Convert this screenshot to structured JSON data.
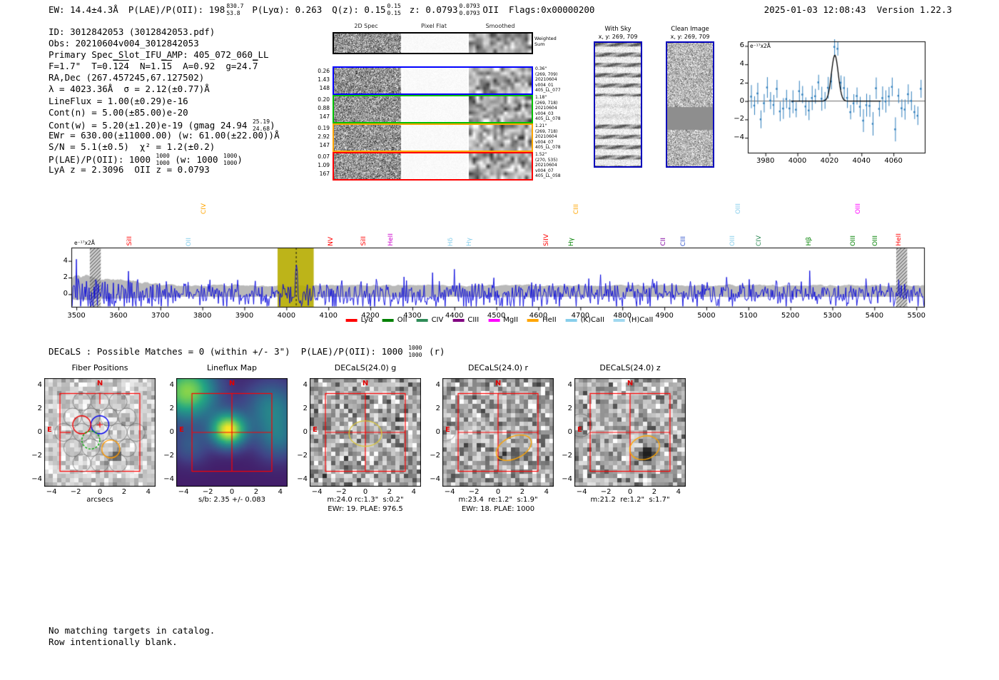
{
  "header": {
    "ew": "EW: 14.4±4.3Å",
    "plae": "P(LAE)/P(OII): 198",
    "plae_hi": "830.7",
    "plae_lo": "53.8",
    "plya": "P(Lyα): 0.263",
    "qz": "Q(z): 0.15",
    "qz_hi": "0.15",
    "qz_lo": "0.15",
    "z": "z: 0.0793",
    "z_hi": "0.0793",
    "z_lo": "0.0793",
    "ztype": "OII",
    "flags": "Flags:0x00000200",
    "timestamp": "2025-01-03 12:08:43  Version 1.22.3"
  },
  "info": {
    "l1": "ID: 3012842053 (3012842053.pdf)",
    "l2": "Obs: 20210604v004_3012842053",
    "l3": "Primary Spec_Slot_IFU_AMP: 405_072_060_LL",
    "l4_parts": [
      "F=1.7\"  T=0.",
      "124",
      "  N=1.",
      "15",
      "  A=0.92  g=24.",
      "7"
    ],
    "l5": "RA,Dec (267.457245,67.127502)",
    "l6": "λ = 4023.36Å  σ = 2.12(±0.77)Å",
    "l7": "LineFlux = 1.00(±0.29)e-16",
    "l8": "Cont(n) = 5.00(±85.00)e-20",
    "l9_pre": "Cont(w) = 5.20(±1.20)e-19 (gmag 24.94 ",
    "l9_hi": "25.19",
    "l9_lo": "24.68",
    "l9_post": ")",
    "l10": "EWr = 630.00(±11000.00) (w: 61.00(±22.00))Å",
    "l11": "S/N = 5.1(±0.5)  χ² = 1.2(±0.2)",
    "l12_pre": "P(LAE)/P(OII): 1000 ",
    "l12_hi1": "1000",
    "l12_lo1": "1000",
    "l12_mid": " (w: 1000 ",
    "l12_hi2": "1000",
    "l12_lo2": "1000",
    "l12_post": ")",
    "l13": "LyA z = 2.3096  OII z = 0.0793"
  },
  "spec2d": {
    "col_headers": [
      "2D Spec",
      "Pixel Flat",
      "Smoothed"
    ],
    "weighted_label": [
      "Weighted",
      "Sum"
    ],
    "rows": [
      {
        "left": [
          "0.26",
          "1.43",
          "148"
        ],
        "right": [
          "0.36\"",
          "(269, 709)",
          "20210604",
          "v004_01",
          "405_LL_077"
        ],
        "color": "#0000ff"
      },
      {
        "left": [
          "0.20",
          "0.88",
          "147"
        ],
        "right": [
          "1.18\"",
          "(269, 718)",
          "20210604",
          "v004_03",
          "405_LL_078"
        ],
        "color": "#00c000"
      },
      {
        "left": [
          "0.19",
          "2.92",
          "147"
        ],
        "right": [
          "1.21\"",
          "(269, 718)",
          "20210604",
          "v004_07",
          "405_LL_078"
        ],
        "color": "#ffa500"
      },
      {
        "left": [
          "0.07",
          "1.09",
          "167"
        ],
        "right": [
          "1.52\"",
          "(270, 535)",
          "20210604",
          "v004_07",
          "405_LL_058"
        ],
        "color": "#ff0000"
      }
    ]
  },
  "image_panels": {
    "withsky": {
      "title": "With Sky",
      "coords": "x, y: 269, 709"
    },
    "clean": {
      "title": "Clean Image",
      "coords": "x, y: 269, 709"
    }
  },
  "decals_line": {
    "pre": "DECaLS : Possible Matches = 0 (within +/- 3\")  P(LAE)/P(OII): 1000 ",
    "hi": "1000",
    "lo": "1000",
    "post": " (r)"
  },
  "footer": [
    "No matching targets in catalog.",
    "Row intentionally blank."
  ],
  "chart_data": [
    {
      "id": "line_fit_zoom",
      "type": "scatter",
      "ylabel": "e⁻¹⁷x2Å",
      "xlim": [
        3969,
        4080
      ],
      "ylim": [
        -5.7,
        6.5
      ],
      "xticks": [
        3980,
        4000,
        4020,
        4040,
        4060
      ],
      "yticks": [
        6,
        4,
        2,
        0,
        -2,
        -4
      ],
      "marker_color": "#2e7ebc",
      "fit": {
        "type": "gaussian",
        "center": 4023.36,
        "sigma": 2.12,
        "amplitude": 5.0,
        "color": "#000000"
      },
      "noise": {
        "seed": 11,
        "std": 1.15,
        "err_base": 0.75,
        "err_var": 0.6,
        "x_start": 3971,
        "x_end": 4077,
        "x_step": 2
      }
    },
    {
      "id": "full_spectrum",
      "type": "line",
      "ylabel": "e⁻¹⁷x2Å",
      "xlim": [
        3488,
        5520
      ],
      "ylim": [
        -1.6,
        5.6
      ],
      "xticks": [
        3500,
        3600,
        3700,
        3800,
        3900,
        4000,
        4100,
        4200,
        4300,
        4400,
        4500,
        4600,
        4700,
        4800,
        4900,
        5000,
        5100,
        5200,
        5300,
        5400,
        5500
      ],
      "yticks": [
        4,
        2,
        0
      ],
      "line_color": "#0000dd",
      "envelope_color": "#b9b9b9",
      "signal_band": {
        "x0": 3979,
        "x1": 4065,
        "color": "#b4aa00",
        "center_line": 4023.36
      },
      "masked_bands": [
        [
          3532,
          3558
        ],
        [
          5452,
          5478
        ]
      ],
      "peak": {
        "center": 4023.36,
        "amplitude": 4.3,
        "sigma": 2.4
      },
      "noise": {
        "seed": 23,
        "std": 0.72,
        "x_step": 2
      },
      "emission_lines": [
        {
          "wave": 3629,
          "label": "SiII",
          "color": "#ff0000",
          "tier": 0
        },
        {
          "wave": 3770,
          "label": "OII",
          "color": "#87ceeb",
          "tier": 0
        },
        {
          "wave": 3806,
          "label": "CIV",
          "color": "#ffa500",
          "tier": 1
        },
        {
          "wave": 4108,
          "label": "NV",
          "color": "#ff0000",
          "tier": 0
        },
        {
          "wave": 4186,
          "label": "SiII",
          "color": "#ff0000",
          "tier": 0
        },
        {
          "wave": 4250,
          "label": "HeII",
          "color": "#cc00cc",
          "tier": 0
        },
        {
          "wave": 4393,
          "label": "Hδ",
          "color": "#87ceeb",
          "tier": 0
        },
        {
          "wave": 4437,
          "label": "Hγ",
          "color": "#87ceeb",
          "tier": 0
        },
        {
          "wave": 4622,
          "label": "SiIV",
          "color": "#ff0000",
          "tier": 0
        },
        {
          "wave": 4680,
          "label": "Hγ",
          "color": "#008000",
          "tier": 0
        },
        {
          "wave": 4692,
          "label": "CIII",
          "color": "#ffa500",
          "tier": 1
        },
        {
          "wave": 4900,
          "label": "CII",
          "color": "#8000a0",
          "tier": 0
        },
        {
          "wave": 4948,
          "label": "CIII",
          "color": "#3355cc",
          "tier": 0
        },
        {
          "wave": 5065,
          "label": "OIII",
          "color": "#87ceeb",
          "tier": 0
        },
        {
          "wave": 5078,
          "label": "OIII",
          "color": "#87ceeb",
          "tier": 1
        },
        {
          "wave": 5128,
          "label": "CIV",
          "color": "#2e8b57",
          "tier": 0
        },
        {
          "wave": 5246,
          "label": "Hβ",
          "color": "#008000",
          "tier": 0
        },
        {
          "wave": 5352,
          "label": "OIII",
          "color": "#008000",
          "tier": 0
        },
        {
          "wave": 5364,
          "label": "OIII",
          "color": "#ff00ff",
          "tier": 1
        },
        {
          "wave": 5404,
          "label": "OIII",
          "color": "#008000",
          "tier": 0
        },
        {
          "wave": 5460,
          "label": "HeII",
          "color": "#ff0000",
          "tier": 0
        }
      ],
      "legend": [
        {
          "label": "Lyα",
          "color": "#ff0000"
        },
        {
          "label": "OII",
          "color": "#008000"
        },
        {
          "label": "CIV",
          "color": "#2e8b57"
        },
        {
          "label": "CIII",
          "color": "#800080"
        },
        {
          "label": "MgII",
          "color": "#ff00ff"
        },
        {
          "label": "HeII",
          "color": "#ffa500"
        },
        {
          "label": "(K)CaII",
          "color": "#87ceeb"
        },
        {
          "label": "(H)CaII",
          "color": "#a0d8ef"
        }
      ]
    },
    {
      "id": "cutout_row",
      "type": "image_grid",
      "axis_ticks": [
        -4,
        -2,
        0,
        2,
        4
      ],
      "compass": {
        "north": "N",
        "east": "E",
        "color": "#e00000"
      },
      "panels": [
        {
          "title": "Fiber Positions",
          "caption1": "arcsecs",
          "caption2": ""
        },
        {
          "title": "Lineflux Map",
          "caption1": "s/b: 2.35 +/- 0.083",
          "caption2": ""
        },
        {
          "title": "DECaLS(24.0) g",
          "caption1": "m:24.0 rc:1.3\"  s:0.2\"",
          "caption2": "EWr: 19. PLAE: 976.5"
        },
        {
          "title": "DECaLS(24.0) r",
          "caption1": "m:23.4  re:1.2\"  s:1.9\"",
          "caption2": "EWr: 18. PLAE: 1000"
        },
        {
          "title": "DECaLS(24.0) z",
          "caption1": "m:21.2  re:1.2\"  s:1.7\"",
          "caption2": ""
        }
      ]
    }
  ]
}
